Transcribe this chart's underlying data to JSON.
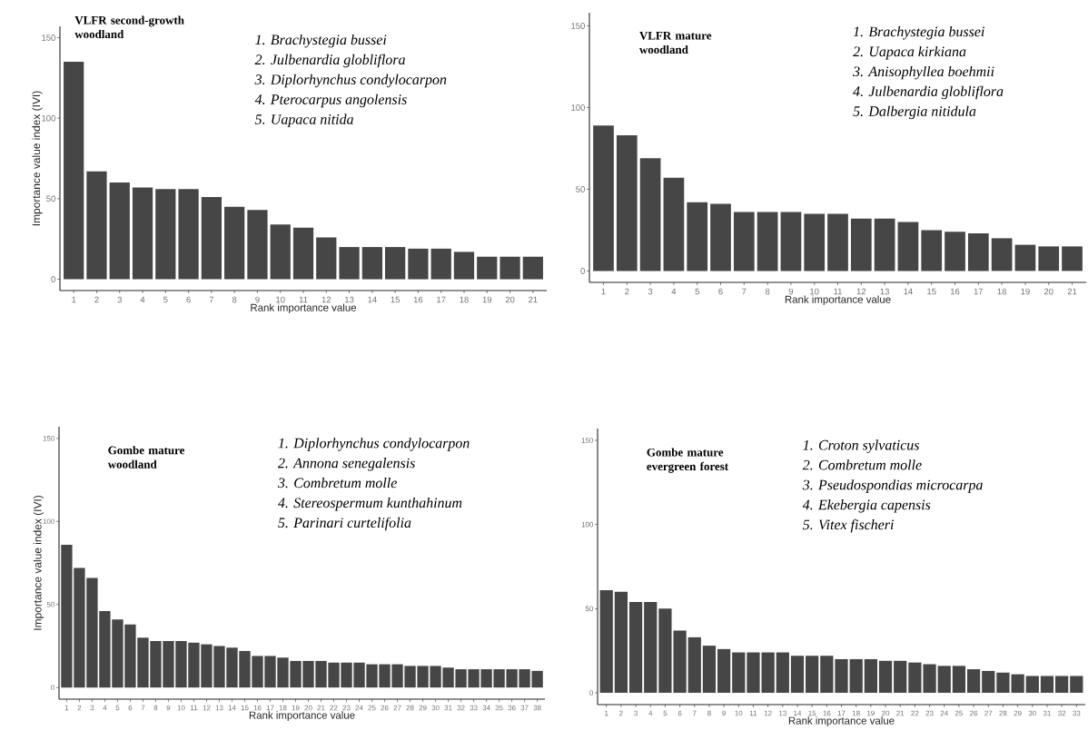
{
  "chart_data": [
    {
      "type": "bar",
      "title": "VLFR second-growth woodland",
      "annotations": [
        "1. Brachystegia bussei",
        "2. Julbenardia globliflora",
        "3. Diplorhynchus condylocarpon",
        "4. Pterocarpus angolensis",
        "5. Uapaca nitida"
      ],
      "xlabel": "Rank importance value",
      "ylabel": "Importance value index (IVI)",
      "categories": [
        "1",
        "2",
        "3",
        "4",
        "5",
        "6",
        "7",
        "8",
        "9",
        "10",
        "11",
        "12",
        "13",
        "14",
        "15",
        "16",
        "17",
        "18",
        "19",
        "20",
        "21"
      ],
      "values": [
        135,
        67,
        60,
        57,
        56,
        56,
        51,
        45,
        43,
        34,
        32,
        26,
        20,
        20,
        20,
        19,
        19,
        17,
        14,
        14,
        14
      ],
      "color": "#464646",
      "ylim": [
        -7,
        157
      ],
      "yticks": [
        0,
        50,
        100,
        150
      ]
    },
    {
      "type": "bar",
      "title": "VLFR mature woodland",
      "annotations": [
        "1. Brachystegia bussei",
        "2. Uapaca kirkiana",
        "3. Anisophyllea boehmii",
        "4. Julbenardia globliflora",
        "5. Dalbergia nitidula"
      ],
      "xlabel": "Rank importance value",
      "categories": [
        "1",
        "2",
        "3",
        "4",
        "5",
        "6",
        "7",
        "8",
        "9",
        "10",
        "11",
        "12",
        "13",
        "14",
        "15",
        "16",
        "17",
        "18",
        "19",
        "20",
        "21"
      ],
      "values": [
        89,
        83,
        69,
        57,
        42,
        41,
        36,
        36,
        36,
        35,
        35,
        32,
        32,
        30,
        25,
        24,
        23,
        20,
        16,
        15,
        15
      ],
      "color": "#464646",
      "ylim": [
        -7,
        158
      ],
      "yticks": [
        0,
        50,
        100,
        150
      ]
    },
    {
      "type": "bar",
      "title": "Gombe mature woodland",
      "annotations": [
        "1. Diplorhynchus condylocarpon",
        "2. Annona senegalensis",
        "3. Combretum molle",
        "4. Stereospermum kunthahinum",
        "5. Parinari curtelifolia"
      ],
      "xlabel": "Rank importance value",
      "ylabel": "Importance value index (IVI)",
      "categories": [
        "1",
        "2",
        "3",
        "4",
        "5",
        "6",
        "7",
        "8",
        "9",
        "10",
        "11",
        "12",
        "13",
        "14",
        "15",
        "16",
        "17",
        "18",
        "19",
        "20",
        "21",
        "22",
        "23",
        "24",
        "25",
        "26",
        "27",
        "28",
        "29",
        "30",
        "31",
        "32",
        "33",
        "34",
        "35",
        "36",
        "37",
        "38"
      ],
      "values": [
        86,
        72,
        66,
        46,
        41,
        38,
        30,
        28,
        28,
        28,
        27,
        26,
        25,
        24,
        22,
        19,
        19,
        18,
        16,
        16,
        16,
        15,
        15,
        15,
        14,
        14,
        14,
        13,
        13,
        13,
        12,
        11,
        11,
        11,
        11,
        11,
        11,
        10
      ],
      "color": "#464646",
      "ylim": [
        -7,
        157
      ],
      "yticks": [
        0,
        50,
        100,
        150
      ]
    },
    {
      "type": "bar",
      "title": "Gombe mature evergreen forest",
      "annotations": [
        "1. Croton sylvaticus",
        "2. Combretum molle",
        "3. Pseudospondias microcarpa",
        "4. Ekebergia capensis",
        "5. Vitex fischeri"
      ],
      "xlabel": "Rank importance value",
      "categories": [
        "1",
        "2",
        "3",
        "4",
        "5",
        "6",
        "7",
        "8",
        "9",
        "10",
        "11",
        "12",
        "13",
        "14",
        "15",
        "16",
        "17",
        "18",
        "19",
        "20",
        "21",
        "22",
        "23",
        "24",
        "25",
        "26",
        "27",
        "28",
        "29",
        "30",
        "31",
        "32",
        "33"
      ],
      "values": [
        61,
        60,
        54,
        54,
        50,
        37,
        33,
        28,
        26,
        24,
        24,
        24,
        24,
        22,
        22,
        22,
        20,
        20,
        20,
        19,
        19,
        18,
        17,
        16,
        16,
        14,
        13,
        12,
        11,
        10,
        10,
        10,
        10
      ],
      "color": "#464646",
      "ylim": [
        -7,
        157
      ],
      "yticks": [
        0,
        50,
        100,
        150
      ]
    }
  ]
}
